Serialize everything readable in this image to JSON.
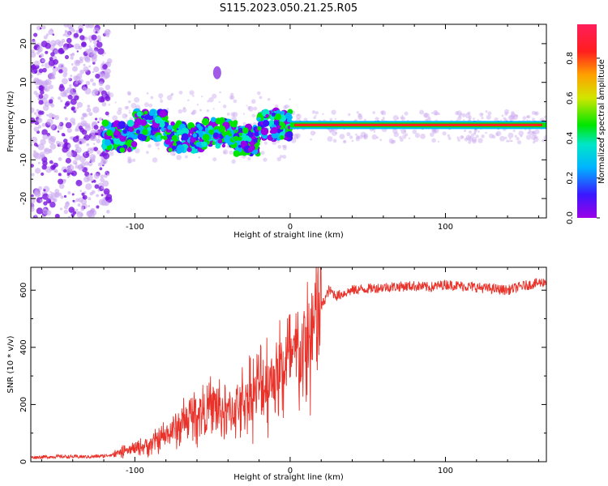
{
  "title": "S115.2023.050.21.25.R05",
  "colors": {
    "snr_line": "#e8322a",
    "scatter_light": "#c9a8f0",
    "scatter_dark": "#7a16e0",
    "colormap": [
      "#9b00e6",
      "#3a18ff",
      "#00b4ff",
      "#00e6c8",
      "#00e600",
      "#d2e600",
      "#ffa000",
      "#ff1e1e",
      "#ff1e5a"
    ]
  },
  "chart_data": [
    {
      "type": "heatmap",
      "xlabel": "Height of straight line (km)",
      "ylabel": "Frequency (Hz)",
      "xlim": [
        -167,
        165
      ],
      "ylim": [
        -25,
        25
      ],
      "xticks": [
        -100,
        0,
        100
      ],
      "yticks": [
        -20,
        -10,
        0,
        10,
        20
      ],
      "colorbar": {
        "label": "Normalized spectral amplitude",
        "range": [
          0,
          0.97
        ],
        "ticks": [
          "0.0",
          "0.2",
          "0.4",
          "0.6",
          "0.8"
        ]
      },
      "features": {
        "noise_region_x": [
          -167,
          -120
        ],
        "carrier_segments": [
          {
            "x": [
              -120,
              -100
            ],
            "freq": -4
          },
          {
            "x": [
              -100,
              -80
            ],
            "freq": -1
          },
          {
            "x": [
              -80,
              -55
            ],
            "freq": -4
          },
          {
            "x": [
              -55,
              -35
            ],
            "freq": -3
          },
          {
            "x": [
              -35,
              -20
            ],
            "freq": -5
          },
          {
            "x": [
              -20,
              0
            ],
            "freq": -1
          },
          {
            "x": [
              0,
              165
            ],
            "freq": -1
          }
        ],
        "isolated_blob": {
          "x": -47,
          "freq": 12.5
        }
      }
    },
    {
      "type": "line",
      "xlabel": "Height of straight line (km)",
      "ylabel": "SNR (10 * v/v)",
      "xlim": [
        -167,
        165
      ],
      "ylim": [
        0,
        680
      ],
      "xticks": [
        -100,
        0,
        100
      ],
      "yticks": [
        0,
        200,
        400,
        600
      ],
      "series": [
        {
          "x": [
            -167,
            -150,
            -130,
            -120,
            -110,
            -100,
            -90,
            -80,
            -70,
            -60,
            -50,
            -40,
            -30,
            -20,
            -10,
            0,
            5,
            10,
            15,
            20,
            25,
            30,
            40,
            60,
            80,
            90,
            100,
            110,
            120,
            130,
            140,
            150,
            165
          ],
          "values": [
            15,
            18,
            17,
            20,
            30,
            45,
            60,
            90,
            130,
            170,
            190,
            170,
            210,
            260,
            300,
            350,
            370,
            390,
            450,
            540,
            600,
            580,
            600,
            610,
            615,
            610,
            620,
            615,
            610,
            605,
            600,
            615,
            630
          ]
        }
      ]
    }
  ]
}
